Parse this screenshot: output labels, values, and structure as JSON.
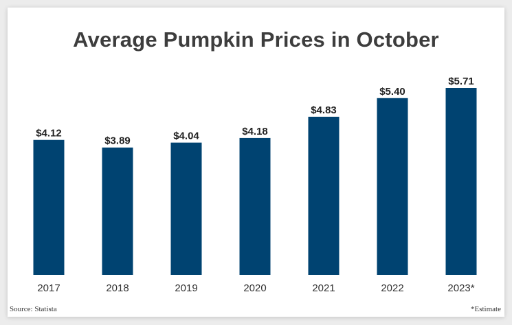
{
  "colors": {
    "bar": "#004371",
    "title": "#3d3d3d",
    "label": "#222222",
    "axis_label": "#333333"
  },
  "chart_data": {
    "type": "bar",
    "title": "Average Pumpkin Prices in October",
    "xlabel": "",
    "ylabel": "",
    "categories": [
      "2017",
      "2018",
      "2019",
      "2020",
      "2021",
      "2022",
      "2023*"
    ],
    "values": [
      4.12,
      3.89,
      4.04,
      4.18,
      4.83,
      5.4,
      5.71
    ],
    "value_labels": [
      "$4.12",
      "$3.89",
      "$4.04",
      "$4.18",
      "$4.83",
      "$5.40",
      "$5.71"
    ],
    "ylim": [
      0,
      5.71
    ],
    "grid": false,
    "legend": "none"
  },
  "footer": {
    "source": "Source: Statista",
    "note": "*Estimate"
  }
}
